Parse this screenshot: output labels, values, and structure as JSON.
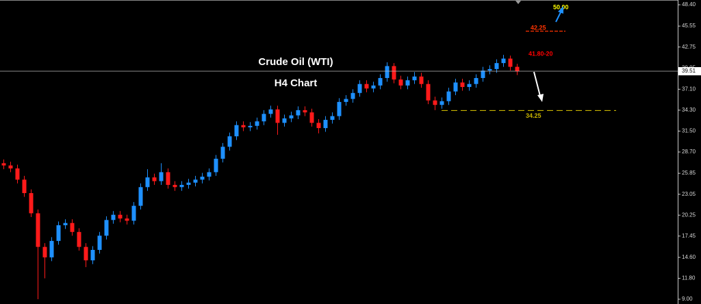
{
  "chart_data": {
    "type": "candlestick",
    "title": "Crude Oil (WTI)",
    "subtitle": "H4 Chart",
    "up_color": "#1e90ff",
    "down_color": "#ff1a1a",
    "ylim": [
      9.0,
      48.4
    ],
    "yticks": [
      {
        "value": 48.4,
        "label": "48.40"
      },
      {
        "value": 45.55,
        "label": "45.55"
      },
      {
        "value": 42.75,
        "label": "42.75"
      },
      {
        "value": 39.95,
        "label": "39.95"
      },
      {
        "value": 37.1,
        "label": "37.10"
      },
      {
        "value": 34.3,
        "label": "34.30"
      },
      {
        "value": 31.5,
        "label": "31.50"
      },
      {
        "value": 28.7,
        "label": "28.70"
      },
      {
        "value": 25.85,
        "label": "25.85"
      },
      {
        "value": 23.05,
        "label": "23.05"
      },
      {
        "value": 20.25,
        "label": "20.25"
      },
      {
        "value": 17.45,
        "label": "17.45"
      },
      {
        "value": 14.6,
        "label": "14.60"
      },
      {
        "value": 11.8,
        "label": "11.80"
      },
      {
        "value": 9.0,
        "label": "9.00"
      }
    ],
    "last_price": 39.51,
    "levels": [
      {
        "value": 34.25,
        "label": "34.25",
        "color": "#c8b400"
      }
    ],
    "annotations": [
      {
        "text": "50.00",
        "color": "#ffff00"
      },
      {
        "text": "42.25",
        "color": "#ff3300"
      },
      {
        "text": "41.80-20",
        "color": "#ff0000"
      }
    ],
    "open": [
      27.2,
      26.9,
      26.5,
      25.0,
      23.2,
      20.5,
      16.0,
      14.6,
      16.8,
      18.9,
      19.2,
      18.0,
      16.0,
      14.2,
      15.6,
      17.5,
      19.6,
      20.3,
      19.8,
      19.5,
      21.5,
      24.0,
      25.3,
      24.8,
      26.0,
      24.3,
      24.0,
      24.3,
      24.6,
      25.0,
      25.4,
      26.0,
      27.8,
      29.4,
      30.8,
      32.3,
      32.0,
      32.2,
      32.8,
      33.8,
      34.4,
      32.6,
      33.2,
      33.6,
      34.3,
      34.0,
      32.6,
      31.9,
      33.0,
      33.5,
      35.4,
      35.8,
      36.6,
      37.8,
      37.2,
      37.6,
      38.6,
      40.2,
      38.4,
      37.6,
      38.3,
      38.8,
      37.8,
      35.6,
      35.0,
      35.5,
      36.8,
      38.0,
      37.4,
      37.8,
      38.6,
      39.6,
      39.8,
      40.6,
      41.2,
      40.1
    ],
    "high": [
      27.7,
      27.4,
      27.0,
      25.5,
      23.7,
      21.0,
      16.5,
      17.3,
      19.4,
      19.7,
      19.7,
      18.5,
      16.5,
      16.1,
      18.0,
      20.1,
      20.8,
      20.8,
      20.3,
      22.0,
      24.5,
      26.4,
      25.8,
      27.2,
      26.5,
      24.8,
      24.8,
      25.1,
      25.5,
      25.9,
      26.5,
      28.3,
      29.9,
      31.3,
      32.8,
      32.8,
      32.7,
      33.3,
      34.3,
      34.9,
      34.9,
      33.7,
      34.1,
      34.8,
      34.8,
      34.5,
      33.1,
      33.5,
      34.0,
      35.9,
      36.3,
      37.1,
      38.3,
      38.3,
      38.1,
      39.1,
      40.7,
      40.6,
      38.9,
      38.8,
      39.4,
      39.3,
      38.3,
      36.1,
      36.0,
      37.3,
      38.5,
      38.5,
      38.3,
      39.1,
      40.1,
      40.3,
      41.1,
      41.7,
      41.6,
      40.5
    ],
    "low": [
      26.4,
      26.0,
      24.5,
      22.7,
      20.0,
      9.0,
      11.8,
      14.1,
      16.3,
      18.4,
      17.5,
      15.5,
      13.3,
      13.7,
      15.1,
      17.0,
      19.1,
      19.3,
      19.0,
      19.0,
      21.0,
      23.5,
      24.3,
      24.3,
      23.8,
      23.5,
      23.5,
      23.8,
      24.1,
      24.5,
      24.9,
      25.5,
      27.3,
      28.9,
      30.3,
      31.5,
      31.5,
      31.7,
      32.3,
      33.3,
      31.0,
      32.1,
      32.7,
      33.1,
      33.5,
      32.1,
      31.2,
      31.4,
      32.5,
      33.0,
      34.9,
      35.3,
      36.1,
      36.7,
      36.7,
      37.1,
      38.1,
      37.9,
      37.1,
      37.1,
      37.8,
      37.3,
      35.1,
      34.3,
      34.5,
      35.0,
      36.3,
      36.9,
      36.9,
      37.3,
      38.1,
      39.1,
      39.3,
      40.1,
      39.6,
      39.0
    ],
    "close": [
      26.9,
      26.5,
      25.0,
      23.2,
      20.5,
      16.0,
      14.6,
      16.8,
      18.9,
      19.2,
      18.0,
      16.0,
      14.2,
      15.6,
      17.5,
      19.6,
      20.3,
      19.8,
      19.5,
      21.5,
      24.0,
      25.3,
      24.8,
      26.0,
      24.3,
      24.0,
      24.3,
      24.6,
      25.0,
      25.4,
      26.0,
      27.8,
      29.4,
      30.8,
      32.3,
      32.0,
      32.2,
      32.8,
      33.8,
      34.4,
      32.6,
      33.2,
      33.6,
      34.3,
      34.0,
      32.6,
      31.9,
      33.0,
      33.5,
      35.4,
      35.8,
      36.6,
      37.8,
      37.2,
      37.6,
      38.6,
      40.2,
      38.4,
      37.6,
      38.3,
      38.8,
      37.8,
      35.6,
      35.0,
      35.5,
      36.8,
      38.0,
      37.4,
      37.8,
      38.6,
      39.6,
      39.8,
      40.6,
      41.2,
      40.1,
      39.5
    ]
  }
}
